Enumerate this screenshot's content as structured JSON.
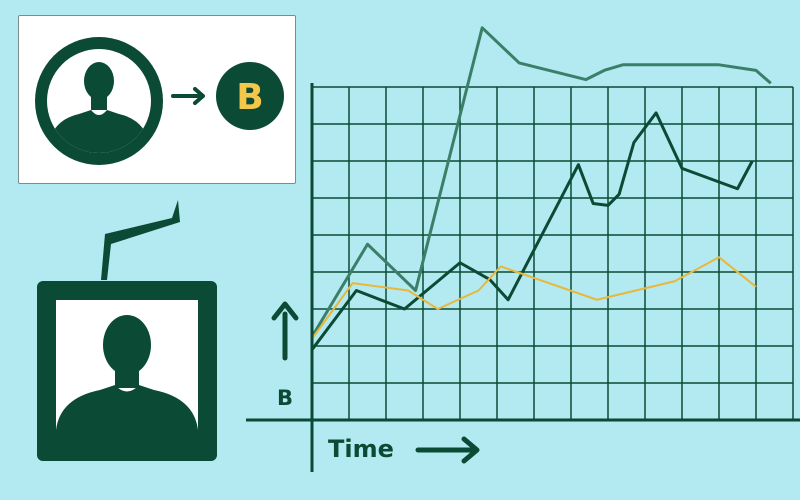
{
  "bubble": {
    "badge_letter": "B"
  },
  "axis": {
    "y_label": "B",
    "x_label": "Time"
  },
  "colors": {
    "background": "#b3e9f1",
    "dark_green": "#0b4a34",
    "mid_green": "#3b7f68",
    "yellow": "#e8b83c",
    "badge_text": "#f4c64a"
  },
  "chart_data": {
    "type": "line",
    "xlabel": "Time",
    "ylabel": "B",
    "grid": true,
    "legend": "none",
    "series": [
      {
        "color": "#3b7f68",
        "points": [
          [
            0,
            95
          ],
          [
            1.5,
            145
          ],
          [
            2.8,
            120
          ],
          [
            4.6,
            262
          ],
          [
            5.6,
            243
          ],
          [
            7.4,
            234
          ],
          [
            7.9,
            239
          ],
          [
            8.4,
            242
          ],
          [
            10.4,
            242
          ],
          [
            11,
            242
          ],
          [
            12,
            239
          ],
          [
            12.4,
            232
          ]
        ]
      },
      {
        "color": "#0b4a34",
        "points": [
          [
            0,
            88
          ],
          [
            1.2,
            120
          ],
          [
            2.5,
            110
          ],
          [
            4,
            135
          ],
          [
            4.8,
            126
          ],
          [
            5.3,
            115
          ],
          [
            7.2,
            188
          ],
          [
            7.6,
            167
          ],
          [
            8,
            166
          ],
          [
            8.3,
            172
          ],
          [
            8.7,
            200
          ],
          [
            9.3,
            216
          ],
          [
            10,
            186
          ],
          [
            11.5,
            175
          ],
          [
            11.9,
            190
          ]
        ]
      },
      {
        "color": "#e8b83c",
        "points": [
          [
            0,
            94
          ],
          [
            1.1,
            124
          ],
          [
            2.6,
            120
          ],
          [
            3.4,
            110
          ],
          [
            4.5,
            120
          ],
          [
            5.1,
            133
          ],
          [
            7.7,
            115
          ],
          [
            9.8,
            125
          ],
          [
            11,
            138
          ],
          [
            12,
            122
          ]
        ]
      }
    ]
  }
}
